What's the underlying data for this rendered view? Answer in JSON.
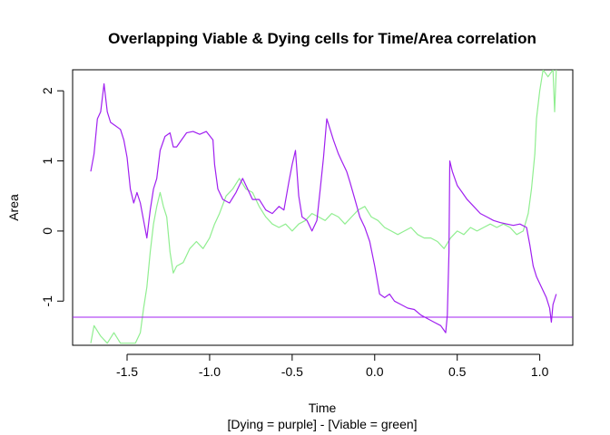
{
  "chart_data": {
    "type": "line",
    "title": "Overlapping Viable & Dying cells for Time/Area correlation",
    "xlabel": "Time",
    "subtitle": "[Dying = purple] - [Viable = green]",
    "ylabel": "Area",
    "xlim": [
      -1.83,
      1.2
    ],
    "ylim": [
      -1.63,
      2.3
    ],
    "xticks": [
      "-1.5",
      "-1.0",
      "-0.5",
      "0.0",
      "0.5",
      "1.0"
    ],
    "yticks": [
      "-1",
      "0",
      "1",
      "2"
    ],
    "grid": false,
    "series": [
      {
        "color": "#a020f0",
        "points": [
          [
            -1.72,
            0.85
          ],
          [
            -1.7,
            1.1
          ],
          [
            -1.68,
            1.6
          ],
          [
            -1.66,
            1.7
          ],
          [
            -1.64,
            2.1
          ],
          [
            -1.62,
            1.7
          ],
          [
            -1.6,
            1.55
          ],
          [
            -1.57,
            1.5
          ],
          [
            -1.54,
            1.45
          ],
          [
            -1.52,
            1.3
          ],
          [
            -1.5,
            1.05
          ],
          [
            -1.48,
            0.6
          ],
          [
            -1.46,
            0.4
          ],
          [
            -1.44,
            0.55
          ],
          [
            -1.42,
            0.4
          ],
          [
            -1.4,
            0.15
          ],
          [
            -1.38,
            -0.1
          ],
          [
            -1.36,
            0.3
          ],
          [
            -1.34,
            0.6
          ],
          [
            -1.32,
            0.75
          ],
          [
            -1.3,
            1.15
          ],
          [
            -1.27,
            1.35
          ],
          [
            -1.24,
            1.4
          ],
          [
            -1.22,
            1.2
          ],
          [
            -1.2,
            1.2
          ],
          [
            -1.17,
            1.3
          ],
          [
            -1.14,
            1.4
          ],
          [
            -1.1,
            1.42
          ],
          [
            -1.06,
            1.38
          ],
          [
            -1.02,
            1.42
          ],
          [
            -0.98,
            1.3
          ],
          [
            -0.97,
            0.95
          ],
          [
            -0.95,
            0.6
          ],
          [
            -0.92,
            0.45
          ],
          [
            -0.88,
            0.4
          ],
          [
            -0.84,
            0.55
          ],
          [
            -0.8,
            0.75
          ],
          [
            -0.77,
            0.6
          ],
          [
            -0.74,
            0.45
          ],
          [
            -0.7,
            0.45
          ],
          [
            -0.66,
            0.3
          ],
          [
            -0.62,
            0.25
          ],
          [
            -0.58,
            0.35
          ],
          [
            -0.55,
            0.3
          ],
          [
            -0.52,
            0.7
          ],
          [
            -0.5,
            0.95
          ],
          [
            -0.48,
            1.15
          ],
          [
            -0.46,
            0.5
          ],
          [
            -0.44,
            0.2
          ],
          [
            -0.41,
            0.15
          ],
          [
            -0.38,
            0.0
          ],
          [
            -0.35,
            0.15
          ],
          [
            -0.33,
            0.6
          ],
          [
            -0.31,
            1.05
          ],
          [
            -0.29,
            1.6
          ],
          [
            -0.27,
            1.45
          ],
          [
            -0.25,
            1.3
          ],
          [
            -0.22,
            1.1
          ],
          [
            -0.2,
            1.0
          ],
          [
            -0.17,
            0.85
          ],
          [
            -0.15,
            0.7
          ],
          [
            -0.12,
            0.45
          ],
          [
            -0.09,
            0.2
          ],
          [
            -0.06,
            0.05
          ],
          [
            -0.03,
            -0.15
          ],
          [
            0.0,
            -0.5
          ],
          [
            0.03,
            -0.9
          ],
          [
            0.06,
            -0.95
          ],
          [
            0.09,
            -0.9
          ],
          [
            0.12,
            -1.0
          ],
          [
            0.16,
            -1.05
          ],
          [
            0.2,
            -1.1
          ],
          [
            0.24,
            -1.12
          ],
          [
            0.28,
            -1.2
          ],
          [
            0.32,
            -1.25
          ],
          [
            0.36,
            -1.3
          ],
          [
            0.4,
            -1.35
          ],
          [
            0.43,
            -1.45
          ],
          [
            0.44,
            -1.2
          ],
          [
            0.45,
            -0.3
          ],
          [
            0.455,
            1.0
          ],
          [
            0.47,
            0.85
          ],
          [
            0.5,
            0.65
          ],
          [
            0.53,
            0.55
          ],
          [
            0.56,
            0.45
          ],
          [
            0.6,
            0.35
          ],
          [
            0.64,
            0.25
          ],
          [
            0.68,
            0.2
          ],
          [
            0.72,
            0.15
          ],
          [
            0.76,
            0.12
          ],
          [
            0.8,
            0.1
          ],
          [
            0.84,
            0.08
          ],
          [
            0.88,
            0.1
          ],
          [
            0.92,
            0.05
          ],
          [
            0.94,
            -0.2
          ],
          [
            0.96,
            -0.5
          ],
          [
            0.98,
            -0.65
          ],
          [
            1.0,
            -0.75
          ],
          [
            1.02,
            -0.85
          ],
          [
            1.04,
            -0.95
          ],
          [
            1.06,
            -1.1
          ],
          [
            1.07,
            -1.3
          ],
          [
            1.08,
            -1.05
          ],
          [
            1.1,
            -0.9
          ]
        ]
      },
      {
        "color": "#90ee90",
        "points": [
          [
            -1.72,
            -1.6
          ],
          [
            -1.7,
            -1.35
          ],
          [
            -1.66,
            -1.5
          ],
          [
            -1.62,
            -1.6
          ],
          [
            -1.58,
            -1.45
          ],
          [
            -1.54,
            -1.6
          ],
          [
            -1.5,
            -1.6
          ],
          [
            -1.45,
            -1.6
          ],
          [
            -1.42,
            -1.45
          ],
          [
            -1.4,
            -1.1
          ],
          [
            -1.38,
            -0.8
          ],
          [
            -1.36,
            -0.3
          ],
          [
            -1.34,
            0.1
          ],
          [
            -1.32,
            0.35
          ],
          [
            -1.3,
            0.55
          ],
          [
            -1.28,
            0.35
          ],
          [
            -1.26,
            0.2
          ],
          [
            -1.24,
            -0.3
          ],
          [
            -1.22,
            -0.6
          ],
          [
            -1.2,
            -0.5
          ],
          [
            -1.16,
            -0.45
          ],
          [
            -1.12,
            -0.25
          ],
          [
            -1.08,
            -0.15
          ],
          [
            -1.04,
            -0.25
          ],
          [
            -1.0,
            -0.1
          ],
          [
            -0.97,
            0.1
          ],
          [
            -0.94,
            0.25
          ],
          [
            -0.9,
            0.5
          ],
          [
            -0.86,
            0.6
          ],
          [
            -0.82,
            0.75
          ],
          [
            -0.78,
            0.6
          ],
          [
            -0.74,
            0.55
          ],
          [
            -0.7,
            0.35
          ],
          [
            -0.66,
            0.2
          ],
          [
            -0.62,
            0.1
          ],
          [
            -0.58,
            0.05
          ],
          [
            -0.54,
            0.1
          ],
          [
            -0.5,
            0.0
          ],
          [
            -0.46,
            0.1
          ],
          [
            -0.42,
            0.15
          ],
          [
            -0.38,
            0.25
          ],
          [
            -0.34,
            0.2
          ],
          [
            -0.3,
            0.15
          ],
          [
            -0.26,
            0.25
          ],
          [
            -0.22,
            0.2
          ],
          [
            -0.18,
            0.1
          ],
          [
            -0.14,
            0.2
          ],
          [
            -0.1,
            0.3
          ],
          [
            -0.06,
            0.35
          ],
          [
            -0.02,
            0.2
          ],
          [
            0.02,
            0.15
          ],
          [
            0.06,
            0.05
          ],
          [
            0.1,
            0.0
          ],
          [
            0.14,
            -0.05
          ],
          [
            0.18,
            0.0
          ],
          [
            0.22,
            0.05
          ],
          [
            0.26,
            -0.05
          ],
          [
            0.3,
            -0.1
          ],
          [
            0.34,
            -0.1
          ],
          [
            0.38,
            -0.15
          ],
          [
            0.42,
            -0.25
          ],
          [
            0.46,
            -0.1
          ],
          [
            0.5,
            0.0
          ],
          [
            0.54,
            -0.05
          ],
          [
            0.58,
            0.05
          ],
          [
            0.62,
            0.0
          ],
          [
            0.66,
            0.05
          ],
          [
            0.7,
            0.1
          ],
          [
            0.74,
            0.05
          ],
          [
            0.78,
            0.1
          ],
          [
            0.82,
            0.05
          ],
          [
            0.86,
            -0.05
          ],
          [
            0.9,
            0.0
          ],
          [
            0.93,
            0.25
          ],
          [
            0.95,
            0.6
          ],
          [
            0.97,
            1.1
          ],
          [
            0.98,
            1.6
          ],
          [
            1.0,
            2.0
          ],
          [
            1.02,
            2.3
          ],
          [
            1.05,
            2.2
          ],
          [
            1.08,
            2.3
          ],
          [
            1.09,
            1.7
          ],
          [
            1.1,
            2.3
          ]
        ]
      }
    ],
    "hline": {
      "y": -1.23,
      "color": "#a020f0"
    }
  }
}
